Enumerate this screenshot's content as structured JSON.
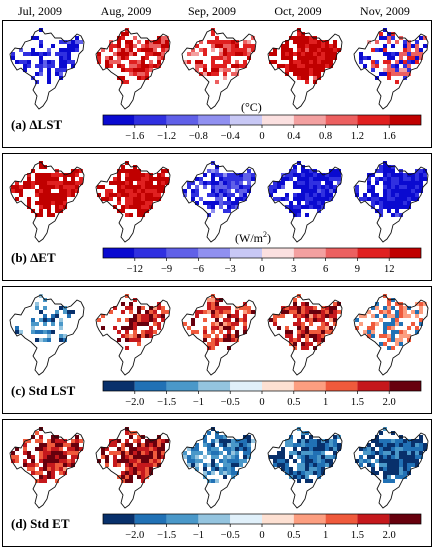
{
  "months": [
    "Jul, 2009",
    "Aug, 2009",
    "Sep, 2009",
    "Oct, 2009",
    "Nov, 2009"
  ],
  "panels": [
    {
      "label": "(a) ΔLST",
      "unit": "(°C)",
      "unit_sup": "",
      "ticks": [
        "−1.6",
        "−1.2",
        "−0.8",
        "−0.4",
        "0",
        "0.4",
        "0.8",
        "1.2",
        "1.6"
      ],
      "colors": [
        "#0a0ad0",
        "#3030e0",
        "#6060e8",
        "#9090f0",
        "#c8c8f5",
        "#fbe0e0",
        "#f3a0a0",
        "#ec6060",
        "#e02020",
        "#c00000"
      ],
      "maps": [
        {
          "hue": "blue",
          "intensity": 0.75,
          "coverage": 0.55
        },
        {
          "hue": "red",
          "intensity": 0.6,
          "coverage": 0.65
        },
        {
          "hue": "red",
          "intensity": 0.45,
          "coverage": 0.6
        },
        {
          "hue": "red",
          "intensity": 0.85,
          "coverage": 0.8
        },
        {
          "hue": "mixed",
          "intensity": 0.5,
          "coverage": 0.6
        }
      ]
    },
    {
      "label": "(b) ΔET",
      "unit": "(W/m",
      "unit_sup": "2",
      "unit_end": ")",
      "ticks": [
        "−12",
        "−9",
        "−6",
        "−3",
        "0",
        "3",
        "6",
        "9",
        "12"
      ],
      "colors": [
        "#0a0ad0",
        "#3030e0",
        "#6060e8",
        "#9090f0",
        "#c8c8f5",
        "#fbe0e0",
        "#f3a0a0",
        "#ec6060",
        "#e02020",
        "#c00000"
      ],
      "maps": [
        {
          "hue": "red",
          "intensity": 0.9,
          "coverage": 0.75
        },
        {
          "hue": "red",
          "intensity": 0.9,
          "coverage": 0.8
        },
        {
          "hue": "blue",
          "intensity": 0.55,
          "coverage": 0.7
        },
        {
          "hue": "blue",
          "intensity": 0.8,
          "coverage": 0.8
        },
        {
          "hue": "blue",
          "intensity": 0.85,
          "coverage": 0.85
        }
      ]
    },
    {
      "label": "(c) Std LST",
      "unit": "",
      "ticks": [
        "−2.0",
        "−1.5",
        "−1",
        "−0.5",
        "0",
        "0.5",
        "1",
        "1.5",
        "2.0"
      ],
      "colors": [
        "#08306b",
        "#2171b5",
        "#4a98c9",
        "#94c4df",
        "#e0f0fa",
        "#fde0d2",
        "#fc9e80",
        "#ef5a3c",
        "#c5181c",
        "#67000d"
      ],
      "maps": [
        {
          "hue": "cool",
          "intensity": 0.45,
          "coverage": 0.35
        },
        {
          "hue": "warm",
          "intensity": 0.55,
          "coverage": 0.55
        },
        {
          "hue": "warm",
          "intensity": 0.5,
          "coverage": 0.65
        },
        {
          "hue": "warm",
          "intensity": 0.55,
          "coverage": 0.7
        },
        {
          "hue": "mixed2",
          "intensity": 0.35,
          "coverage": 0.55
        }
      ]
    },
    {
      "label": "(d) Std ET",
      "unit": "",
      "ticks": [
        "−2.0",
        "−1.5",
        "−1",
        "−0.5",
        "0",
        "0.5",
        "1",
        "1.5",
        "2.0"
      ],
      "colors": [
        "#08306b",
        "#2171b5",
        "#4a98c9",
        "#94c4df",
        "#e0f0fa",
        "#fde0d2",
        "#fc9e80",
        "#ef5a3c",
        "#c5181c",
        "#67000d"
      ],
      "maps": [
        {
          "hue": "warm",
          "intensity": 0.55,
          "coverage": 0.8
        },
        {
          "hue": "warm",
          "intensity": 0.6,
          "coverage": 0.8
        },
        {
          "hue": "cool",
          "intensity": 0.45,
          "coverage": 0.7
        },
        {
          "hue": "cool",
          "intensity": 0.6,
          "coverage": 0.8
        },
        {
          "hue": "cool",
          "intensity": 0.7,
          "coverage": 0.8
        }
      ]
    }
  ],
  "chart_data": {
    "type": "heatmap",
    "title": "",
    "columns": [
      "Jul, 2009",
      "Aug, 2009",
      "Sep, 2009",
      "Oct, 2009",
      "Nov, 2009"
    ],
    "rows": [
      "(a) ΔLST",
      "(b) ΔET",
      "(c) Std LST",
      "(d) Std ET"
    ],
    "colorbars": [
      {
        "row": "(a) ΔLST",
        "unit": "°C",
        "ticks": [
          -1.6,
          -1.2,
          -0.8,
          -0.4,
          0,
          0.4,
          0.8,
          1.2,
          1.6
        ]
      },
      {
        "row": "(b) ΔET",
        "unit": "W/m2",
        "ticks": [
          -12,
          -9,
          -6,
          -3,
          0,
          3,
          6,
          9,
          12
        ]
      },
      {
        "row": "(c) Std LST",
        "ticks": [
          -2.0,
          -1.5,
          -1,
          -0.5,
          0,
          0.5,
          1,
          1.5,
          2.0
        ]
      },
      {
        "row": "(d) Std ET",
        "ticks": [
          -2.0,
          -1.5,
          -1,
          -0.5,
          0,
          0.5,
          1,
          1.5,
          2.0
        ]
      }
    ],
    "dominant_sign": [
      [
        "negative",
        "positive",
        "positive",
        "positive",
        "mixed"
      ],
      [
        "positive",
        "positive",
        "negative",
        "negative",
        "negative"
      ],
      [
        "mixed",
        "positive",
        "positive",
        "positive",
        "mixed"
      ],
      [
        "positive",
        "positive",
        "negative",
        "negative",
        "negative"
      ]
    ]
  }
}
